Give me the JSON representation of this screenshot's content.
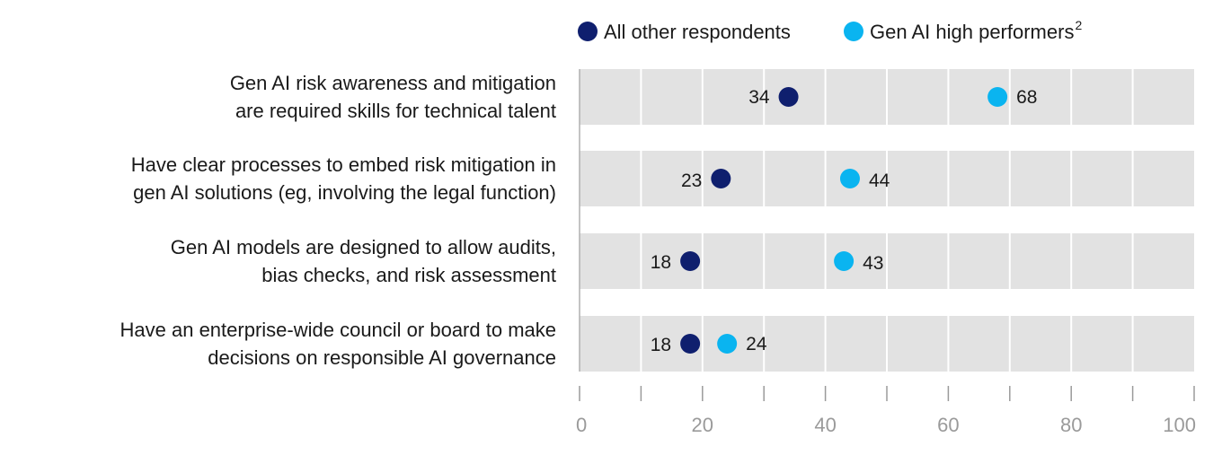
{
  "chart_data": {
    "type": "dot-plot",
    "title": "",
    "xlabel": "",
    "ylabel": "",
    "xlim": [
      0,
      100
    ],
    "x_ticks": [
      0,
      20,
      40,
      60,
      80,
      100
    ],
    "x_tick_labels": [
      "0",
      "20",
      "40",
      "60",
      "80",
      "100"
    ],
    "minor_tick_step": 10,
    "grid": true,
    "legend_position": "top-right",
    "categories": [
      [
        "Gen AI risk awareness and mitigation",
        "are required skills for technical talent"
      ],
      [
        "Have clear processes to embed risk mitigation in",
        "gen AI solutions (eg, involving the legal function)"
      ],
      [
        "Gen AI models are designed to allow audits,",
        "bias checks, and risk assessment"
      ],
      [
        "Have an enterprise-wide council or board to make",
        "decisions on responsible AI governance"
      ]
    ],
    "series": [
      {
        "name": "All other respondents",
        "name_sup": "",
        "color": "#0f1f6e",
        "values": [
          34,
          23,
          18,
          18
        ]
      },
      {
        "name": "Gen AI high performers",
        "name_sup": "2",
        "color": "#0ab4f0",
        "values": [
          68,
          44,
          43,
          24
        ]
      }
    ]
  },
  "colors": {
    "row_background": "#e2e2e2",
    "gridline": "#ffffff",
    "axis_line": "#b0b0b0",
    "tick_mark": "#9a9a9a"
  }
}
